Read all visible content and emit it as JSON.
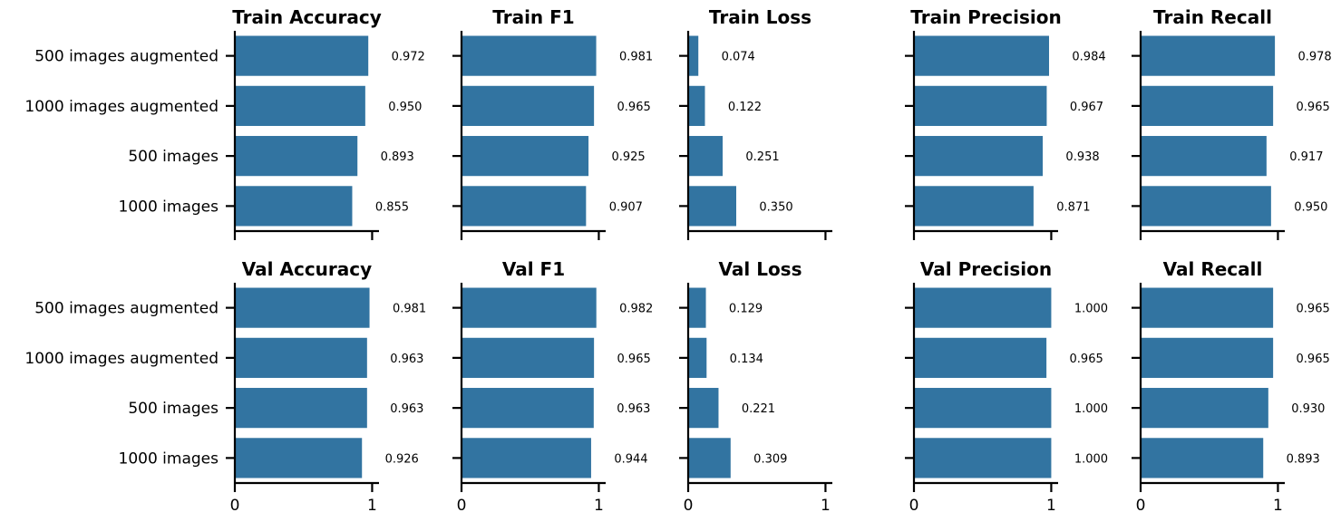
{
  "chart_data": {
    "type": "bar",
    "orientation": "horizontal",
    "bar_color": "#3274a1",
    "categories": [
      "500 images augmented",
      "1000 images augmented",
      "500 images",
      "1000 images"
    ],
    "xlim": [
      0,
      1.05
    ],
    "xticks": [
      "0",
      "1"
    ],
    "grid": false,
    "panels": [
      {
        "title": "Train Accuracy",
        "values": [
          0.972,
          0.95,
          0.893,
          0.855
        ],
        "labels": [
          "0.972",
          "0.950",
          "0.893",
          "0.855"
        ]
      },
      {
        "title": "Train F1",
        "values": [
          0.981,
          0.965,
          0.925,
          0.907
        ],
        "labels": [
          "0.981",
          "0.965",
          "0.925",
          "0.907"
        ]
      },
      {
        "title": "Train Loss",
        "values": [
          0.074,
          0.122,
          0.251,
          0.35
        ],
        "labels": [
          "0.074",
          "0.122",
          "0.251",
          "0.350"
        ]
      },
      {
        "title": "Train Precision",
        "values": [
          0.984,
          0.967,
          0.938,
          0.871
        ],
        "labels": [
          "0.984",
          "0.967",
          "0.938",
          "0.871"
        ]
      },
      {
        "title": "Train Recall",
        "values": [
          0.978,
          0.965,
          0.917,
          0.95
        ],
        "labels": [
          "0.978",
          "0.965",
          "0.917",
          "0.950"
        ]
      },
      {
        "title": "Val Accuracy",
        "values": [
          0.981,
          0.963,
          0.963,
          0.926
        ],
        "labels": [
          "0.981",
          "0.963",
          "0.963",
          "0.926"
        ]
      },
      {
        "title": "Val F1",
        "values": [
          0.982,
          0.965,
          0.963,
          0.944
        ],
        "labels": [
          "0.982",
          "0.965",
          "0.963",
          "0.944"
        ]
      },
      {
        "title": "Val Loss",
        "values": [
          0.129,
          0.134,
          0.221,
          0.309
        ],
        "labels": [
          "0.129",
          "0.134",
          "0.221",
          "0.309"
        ]
      },
      {
        "title": "Val Precision",
        "values": [
          1.0,
          0.965,
          1.0,
          1.0
        ],
        "labels": [
          "1.000",
          "0.965",
          "1.000",
          "1.000"
        ]
      },
      {
        "title": "Val Recall",
        "values": [
          0.965,
          0.965,
          0.93,
          0.893
        ],
        "labels": [
          "0.965",
          "0.965",
          "0.930",
          "0.893"
        ]
      }
    ]
  }
}
